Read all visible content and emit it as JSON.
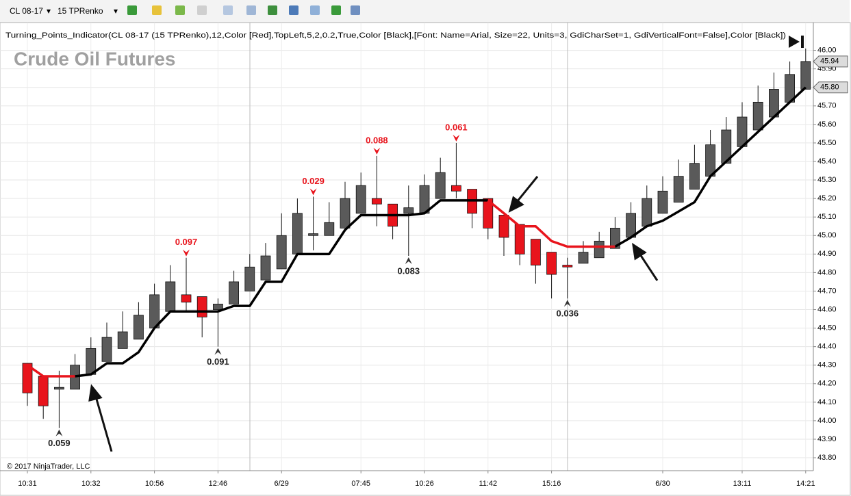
{
  "toolbar": {
    "instrument": "CL 08-17",
    "bars": "15 TPRenko"
  },
  "chart_data": {
    "type": "candlestick",
    "indicator_label": "Turning_Points_Indicator(CL 08-17 (15 TPRenko),12,Color [Red],TopLeft,5,2,0.2,True,Color [Black],[Font: Name=Arial, Size=22, Units=3, GdiCharSet=1, GdiVerticalFont=False],Color [Black])",
    "title": "Crude Oil Futures",
    "copyright": "© 2017 NinjaTrader, LLC",
    "categories": [
      "10:31",
      null,
      null,
      null,
      "10:32",
      null,
      null,
      null,
      "10:56",
      null,
      null,
      null,
      "12:46",
      null,
      null,
      null,
      "6/29",
      null,
      null,
      null,
      null,
      "07:45",
      null,
      null,
      null,
      "10:26",
      null,
      null,
      null,
      "11:42",
      null,
      null,
      null,
      "15:16",
      null,
      null,
      null,
      null,
      null,
      null,
      "6/30",
      null,
      null,
      null,
      null,
      "13:11",
      null,
      null,
      null,
      "14:21"
    ],
    "open": [
      44.31,
      44.24,
      44.17,
      44.17,
      44.25,
      44.32,
      44.39,
      44.44,
      44.5,
      44.59,
      44.68,
      44.67,
      44.6,
      44.63,
      44.7,
      44.76,
      44.82,
      44.9,
      45.0,
      45.0,
      45.04,
      45.12,
      45.2,
      45.17,
      45.12,
      45.12,
      45.2,
      45.27,
      45.25,
      45.2,
      45.11,
      45.06,
      44.98,
      44.91,
      44.84,
      44.85,
      44.88,
      44.93,
      44.99,
      45.05,
      45.12,
      45.18,
      45.25,
      45.32,
      45.39,
      45.48,
      45.57,
      45.64,
      45.72,
      45.79
    ],
    "close": [
      44.15,
      44.08,
      44.18,
      44.3,
      44.39,
      44.45,
      44.48,
      44.57,
      44.68,
      44.75,
      44.64,
      44.56,
      44.63,
      44.75,
      44.83,
      44.89,
      45.0,
      45.12,
      45.01,
      45.07,
      45.2,
      45.27,
      45.17,
      45.05,
      45.15,
      45.27,
      45.34,
      45.24,
      45.12,
      45.04,
      44.99,
      44.9,
      44.84,
      44.79,
      44.83,
      44.91,
      44.97,
      45.04,
      45.12,
      45.2,
      45.24,
      45.32,
      45.39,
      45.49,
      45.57,
      45.64,
      45.72,
      45.79,
      45.87,
      45.94
    ],
    "high": [
      44.31,
      44.24,
      44.27,
      44.36,
      44.45,
      44.53,
      44.59,
      44.64,
      44.74,
      44.84,
      44.88,
      44.67,
      44.66,
      44.81,
      44.9,
      44.96,
      45.12,
      45.2,
      45.21,
      45.18,
      45.29,
      45.34,
      45.43,
      45.17,
      45.27,
      45.33,
      45.42,
      45.5,
      45.25,
      45.2,
      45.11,
      45.06,
      44.98,
      44.91,
      44.88,
      44.97,
      45.02,
      45.1,
      45.18,
      45.27,
      45.32,
      45.41,
      45.49,
      45.57,
      45.64,
      45.72,
      45.81,
      45.88,
      45.94,
      46.01
    ],
    "low": [
      44.08,
      44.01,
      43.96,
      44.17,
      44.25,
      44.32,
      44.39,
      44.44,
      44.5,
      44.59,
      44.59,
      44.45,
      44.4,
      44.63,
      44.7,
      44.76,
      44.82,
      44.9,
      44.92,
      45.0,
      45.04,
      45.12,
      45.05,
      44.98,
      44.89,
      45.12,
      45.2,
      45.2,
      45.04,
      44.98,
      44.89,
      44.84,
      44.74,
      44.66,
      44.66,
      44.85,
      44.88,
      44.93,
      44.99,
      45.05,
      45.12,
      45.18,
      45.25,
      45.32,
      45.39,
      45.48,
      45.57,
      45.64,
      45.72,
      45.79
    ],
    "up_color": "#5a5a5a",
    "down_color": "#e8141c",
    "trend_down": {
      "color": "#e8141c",
      "values": [
        44.3,
        44.24,
        44.24,
        44.24,
        null,
        null,
        null,
        null,
        null,
        null,
        null,
        null,
        null,
        null,
        null,
        null,
        null,
        null,
        null,
        null,
        null,
        null,
        null,
        null,
        null,
        null,
        null,
        null,
        null,
        45.19,
        45.12,
        45.05,
        45.05,
        44.97,
        44.94,
        44.94,
        44.94,
        44.94,
        null,
        null,
        null,
        null,
        null,
        null,
        null,
        null,
        null,
        null,
        null,
        null
      ]
    },
    "trend_up": {
      "color": "#000000",
      "values": [
        null,
        null,
        null,
        44.24,
        44.25,
        44.31,
        44.31,
        44.37,
        44.5,
        44.59,
        44.59,
        44.59,
        44.59,
        44.62,
        44.62,
        44.75,
        44.75,
        44.9,
        44.9,
        44.9,
        45.03,
        45.11,
        45.11,
        45.11,
        45.11,
        45.12,
        45.19,
        45.19,
        45.19,
        45.19,
        null,
        null,
        null,
        null,
        null,
        null,
        null,
        44.94,
        44.99,
        45.05,
        45.08,
        45.13,
        45.18,
        45.32,
        45.4,
        45.48,
        45.56,
        45.64,
        45.72,
        45.8
      ]
    },
    "annotations": [
      {
        "index": 2,
        "side": "low",
        "text": "0.059"
      },
      {
        "index": 10,
        "side": "high",
        "text": "0.097"
      },
      {
        "index": 12,
        "side": "low",
        "text": "0.091"
      },
      {
        "index": 18,
        "side": "high",
        "text": "0.029"
      },
      {
        "index": 22,
        "side": "high",
        "text": "0.088"
      },
      {
        "index": 24,
        "side": "low",
        "text": "0.083"
      },
      {
        "index": 27,
        "side": "high",
        "text": "0.061"
      },
      {
        "index": 34,
        "side": "low",
        "text": "0.036"
      }
    ],
    "price_markers": [
      {
        "value": 45.94,
        "label": "45.94"
      },
      {
        "value": 45.8,
        "label": "45.80"
      }
    ],
    "ylim": [
      43.73,
      46.15
    ],
    "yticks": [
      {
        "value": 43.8,
        "label": "43.80"
      },
      {
        "value": 43.9,
        "label": "43.90"
      },
      {
        "value": 44.0,
        "label": "44.00"
      },
      {
        "value": 44.1,
        "label": "44.10"
      },
      {
        "value": 44.2,
        "label": "44.20"
      },
      {
        "value": 44.3,
        "label": "44.30"
      },
      {
        "value": 44.4,
        "label": "44.40"
      },
      {
        "value": 44.5,
        "label": "44.50"
      },
      {
        "value": 44.6,
        "label": "44.60"
      },
      {
        "value": 44.7,
        "label": "44.70"
      },
      {
        "value": 44.8,
        "label": "44.80"
      },
      {
        "value": 44.9,
        "label": "44.90"
      },
      {
        "value": 45.0,
        "label": "45.00"
      },
      {
        "value": 45.1,
        "label": "45.10"
      },
      {
        "value": 45.2,
        "label": "45.20"
      },
      {
        "value": 45.3,
        "label": "45.30"
      },
      {
        "value": 45.4,
        "label": "45.40"
      },
      {
        "value": 45.5,
        "label": "45.50"
      },
      {
        "value": 45.6,
        "label": "45.60"
      },
      {
        "value": 45.7,
        "label": "45.70"
      },
      {
        "value": 45.8,
        "label": "45.80"
      },
      {
        "value": 45.9,
        "label": "45.90"
      },
      {
        "value": 46.0,
        "label": "46.00"
      }
    ],
    "grid": true
  }
}
